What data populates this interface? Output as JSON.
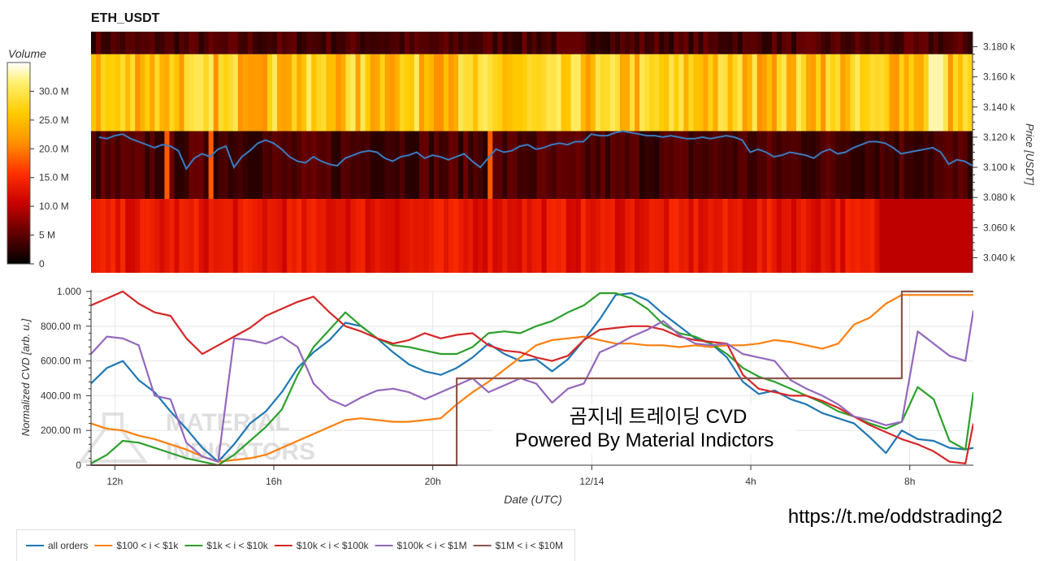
{
  "chart_data": [
    {
      "type": "heatmap",
      "title": "ETH_USDT",
      "ylabel": "Price [USDT]",
      "ylim": [
        3030,
        3190
      ],
      "yticks": [
        "3.040 k",
        "3.060 k",
        "3.080 k",
        "3.100 k",
        "3.120 k",
        "3.140 k",
        "3.160 k",
        "3.180 k"
      ],
      "ytick_values": [
        3040,
        3060,
        3080,
        3100,
        3120,
        3140,
        3160,
        3180
      ],
      "colorbar": {
        "label": "Volume",
        "range": [
          0,
          35
        ],
        "ticks": [
          "0",
          "5 M",
          "10.0 M",
          "15.0 M",
          "20.0 M",
          "25.0 M",
          "30.0 M"
        ],
        "tick_values": [
          0,
          5,
          10,
          15,
          20,
          25,
          30
        ]
      },
      "price_bands": [
        {
          "low": 3175,
          "high": 3190,
          "base_volume": 4
        },
        {
          "low": 3124,
          "high": 3175,
          "base_volume": 26
        },
        {
          "low": 3079,
          "high": 3124,
          "base_volume": 4
        },
        {
          "low": 3030,
          "high": 3079,
          "base_volume": 13
        }
      ],
      "price_line": {
        "color": "#3b7bbf",
        "x": [
          11.6,
          11.8,
          12.0,
          12.2,
          12.4,
          12.6,
          12.8,
          13.0,
          13.2,
          13.4,
          13.6,
          13.8,
          14.0,
          14.2,
          14.4,
          14.6,
          14.8,
          15.0,
          15.2,
          15.4,
          15.6,
          15.8,
          16.0,
          16.2,
          16.4,
          16.6,
          16.8,
          17.0,
          17.2,
          17.4,
          17.6,
          17.8,
          18.0,
          18.2,
          18.4,
          18.6,
          18.8,
          19.0,
          19.2,
          19.4,
          19.6,
          19.8,
          20.0,
          20.2,
          20.4,
          20.6,
          20.8,
          21.0,
          21.2,
          21.4,
          21.6,
          21.8,
          22.0,
          22.2,
          22.4,
          22.6,
          22.8,
          23.0,
          23.2,
          23.4,
          23.6,
          23.8,
          24.0,
          24.2,
          24.4,
          24.6,
          24.8,
          25.0,
          25.2,
          25.4,
          25.6,
          25.8,
          26.0,
          26.2,
          26.4,
          26.6,
          26.8,
          27.0,
          27.2,
          27.4,
          27.6,
          27.8,
          28.0,
          28.2,
          28.4,
          28.6,
          28.8,
          29.0,
          29.2,
          29.4,
          29.6,
          29.8,
          30.0,
          30.2,
          30.4,
          30.6,
          30.8,
          31.0,
          31.2,
          31.4,
          31.6,
          31.8,
          32.0,
          32.2,
          32.4,
          32.6,
          32.8,
          33.0,
          33.2,
          33.4,
          33.6
        ],
        "y": [
          3120,
          3119,
          3121,
          3122,
          3119,
          3117,
          3115,
          3113,
          3115,
          3114,
          3111,
          3099,
          3106,
          3109,
          3107,
          3112,
          3114,
          3100,
          3107,
          3111,
          3116,
          3118,
          3116,
          3112,
          3107,
          3104,
          3103,
          3107,
          3104,
          3102,
          3101,
          3106,
          3108,
          3110,
          3111,
          3110,
          3106,
          3104,
          3107,
          3108,
          3110,
          3106,
          3108,
          3107,
          3105,
          3107,
          3109,
          3104,
          3100,
          3106,
          3112,
          3110,
          3111,
          3114,
          3115,
          3112,
          3113,
          3115,
          3116,
          3115,
          3117,
          3117,
          3122,
          3121,
          3121,
          3123,
          3124,
          3123,
          3122,
          3121,
          3121,
          3120,
          3121,
          3120,
          3119,
          3119,
          3120,
          3119,
          3120,
          3121,
          3120,
          3118,
          3110,
          3112,
          3110,
          3107,
          3108,
          3110,
          3109,
          3108,
          3106,
          3110,
          3112,
          3109,
          3110,
          3113,
          3115,
          3117,
          3117,
          3116,
          3113,
          3109,
          3110,
          3111,
          3112,
          3113,
          3110,
          3102,
          3105,
          3104,
          3101
        ]
      }
    },
    {
      "type": "line",
      "xlabel": "Date (UTC)",
      "ylabel": "Normalized CVD [arb. u.]",
      "ylim": [
        0,
        1000
      ],
      "xlim": [
        11.4,
        33.6
      ],
      "yticks": [
        "0",
        "200.00 m",
        "400.00 m",
        "600.00 m",
        "800.00 m",
        "1.000"
      ],
      "ytick_values": [
        0,
        200,
        400,
        600,
        800,
        1000
      ],
      "xticks": [
        "12h",
        "16h",
        "20h",
        "12/14",
        "4h",
        "8h"
      ],
      "xtick_values": [
        12,
        16,
        20,
        24,
        28,
        32
      ],
      "annotation": [
        "곰지네 트레이딩 CVD",
        "Powered By Material Indictors"
      ],
      "watermark": [
        "MATERIAL",
        "INDICATORS"
      ],
      "x": [
        11.4,
        11.8,
        12.2,
        12.6,
        13.0,
        13.4,
        13.8,
        14.2,
        14.6,
        15.0,
        15.4,
        15.8,
        16.2,
        16.6,
        17.0,
        17.4,
        17.8,
        18.2,
        18.6,
        19.0,
        19.4,
        19.8,
        20.2,
        20.6,
        21.0,
        21.4,
        21.8,
        22.2,
        22.6,
        23.0,
        23.4,
        23.8,
        24.2,
        24.6,
        25.0,
        25.4,
        25.8,
        26.2,
        26.6,
        27.0,
        27.4,
        27.8,
        28.2,
        28.6,
        29.0,
        29.4,
        29.8,
        30.2,
        30.6,
        31.0,
        31.4,
        31.8,
        32.2,
        32.6,
        33.0,
        33.4,
        33.6
      ],
      "series": [
        {
          "name": "all orders",
          "color": "#1f77b4",
          "values": [
            470,
            560,
            600,
            490,
            420,
            310,
            210,
            100,
            20,
            120,
            240,
            310,
            420,
            560,
            650,
            720,
            820,
            800,
            730,
            650,
            580,
            540,
            520,
            560,
            620,
            700,
            640,
            600,
            610,
            540,
            610,
            720,
            840,
            980,
            990,
            950,
            870,
            800,
            730,
            700,
            620,
            480,
            410,
            430,
            380,
            350,
            300,
            270,
            240,
            160,
            70,
            200,
            150,
            140,
            100,
            90,
            100
          ]
        },
        {
          "name": "$100 < i < $1k",
          "color": "#ff7f0e",
          "values": [
            240,
            210,
            200,
            170,
            150,
            120,
            90,
            50,
            20,
            30,
            40,
            60,
            100,
            140,
            180,
            220,
            260,
            270,
            260,
            250,
            250,
            260,
            270,
            350,
            420,
            480,
            550,
            620,
            690,
            720,
            730,
            740,
            720,
            700,
            700,
            690,
            690,
            680,
            690,
            680,
            690,
            690,
            700,
            720,
            710,
            690,
            670,
            700,
            810,
            850,
            930,
            980,
            980,
            980,
            980,
            980,
            980
          ]
        },
        {
          "name": "$1k < i < $10k",
          "color": "#2ca02c",
          "values": [
            10,
            60,
            140,
            130,
            100,
            70,
            40,
            20,
            0,
            60,
            140,
            220,
            320,
            520,
            680,
            780,
            880,
            800,
            730,
            690,
            680,
            660,
            640,
            640,
            680,
            760,
            770,
            760,
            800,
            830,
            880,
            920,
            990,
            990,
            960,
            900,
            810,
            760,
            740,
            700,
            640,
            560,
            510,
            480,
            440,
            400,
            360,
            310,
            280,
            240,
            210,
            250,
            450,
            380,
            140,
            90,
            420
          ]
        },
        {
          "name": "$10k < i < $100k",
          "color": "#d62728",
          "values": [
            920,
            960,
            1000,
            930,
            880,
            860,
            730,
            640,
            690,
            740,
            790,
            860,
            900,
            940,
            970,
            880,
            800,
            770,
            730,
            700,
            720,
            760,
            730,
            750,
            760,
            690,
            660,
            650,
            620,
            600,
            630,
            720,
            780,
            790,
            800,
            800,
            780,
            740,
            720,
            710,
            700,
            520,
            440,
            420,
            400,
            400,
            370,
            330,
            280,
            230,
            190,
            150,
            120,
            80,
            20,
            10,
            240
          ]
        },
        {
          "name": "$100k < i < $1M",
          "color": "#9467bd",
          "values": [
            640,
            740,
            730,
            690,
            400,
            380,
            130,
            50,
            20,
            730,
            720,
            700,
            740,
            680,
            470,
            380,
            340,
            390,
            430,
            440,
            420,
            380,
            420,
            460,
            500,
            420,
            460,
            500,
            470,
            360,
            440,
            470,
            650,
            690,
            740,
            780,
            830,
            750,
            700,
            690,
            700,
            640,
            620,
            600,
            490,
            440,
            400,
            350,
            280,
            260,
            230,
            250,
            770,
            700,
            630,
            600,
            890
          ]
        },
        {
          "name": "$1M < i < $10M",
          "color": "#8c564b",
          "values": [
            0,
            0,
            0,
            0,
            0,
            0,
            0,
            0,
            0,
            0,
            0,
            0,
            0,
            0,
            0,
            0,
            0,
            0,
            0,
            0,
            0,
            0,
            0,
            500,
            500,
            500,
            500,
            500,
            500,
            500,
            500,
            500,
            500,
            500,
            500,
            500,
            500,
            500,
            500,
            500,
            500,
            500,
            500,
            500,
            500,
            500,
            500,
            500,
            500,
            500,
            500,
            1000,
            1000,
            1000,
            1000,
            1000,
            1000
          ]
        }
      ]
    }
  ],
  "watermark_url": "https://t.me/oddstrading2"
}
